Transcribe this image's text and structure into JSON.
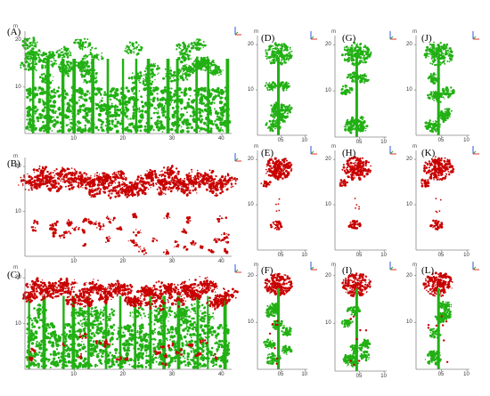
{
  "colors": {
    "green": "#22b014",
    "red": "#c80000",
    "axis": "#888888",
    "compass_red": "#e03030",
    "compass_blue": "#3050e0"
  },
  "icons": {
    "compass": "xyz-axis-triad-icon"
  },
  "panels": [
    {
      "id": "A",
      "label": "(A)",
      "unit": "m",
      "kind": "stand",
      "color": "green",
      "y_ticks": [
        "10",
        "20"
      ],
      "x_ticks": [
        "10",
        "20",
        "30",
        "40"
      ]
    },
    {
      "id": "B",
      "label": "(B)",
      "unit": "m",
      "kind": "stand",
      "color": "red",
      "y_ticks": [
        "10",
        "20"
      ],
      "x_ticks": [
        "10",
        "20",
        "30",
        "40"
      ]
    },
    {
      "id": "C",
      "label": "(C)",
      "unit": "m",
      "kind": "stand",
      "color": "mixed",
      "y_ticks": [
        "10",
        "20"
      ],
      "x_ticks": [
        "10",
        "20",
        "30",
        "40"
      ]
    },
    {
      "id": "D",
      "label": "(D)",
      "unit": "m",
      "kind": "tree",
      "color": "green",
      "y_ticks": [
        "10",
        "20"
      ],
      "x_ticks": [
        "05",
        "10"
      ]
    },
    {
      "id": "E",
      "label": "(E)",
      "unit": "m",
      "kind": "tree",
      "color": "red",
      "y_ticks": [
        "10",
        "20"
      ],
      "x_ticks": [
        "05",
        "10"
      ]
    },
    {
      "id": "F",
      "label": "(F)",
      "unit": "m",
      "kind": "tree",
      "color": "mixed",
      "y_ticks": [
        "10",
        "20"
      ],
      "x_ticks": [
        "05",
        "10"
      ]
    },
    {
      "id": "G",
      "label": "(G)",
      "unit": "m",
      "kind": "tree",
      "color": "green",
      "y_ticks": [
        "10",
        "20"
      ],
      "x_ticks": [
        "05",
        "10"
      ]
    },
    {
      "id": "H",
      "label": "(H)",
      "unit": "m",
      "kind": "tree",
      "color": "red",
      "y_ticks": [
        "10",
        "20"
      ],
      "x_ticks": [
        "05",
        "10"
      ]
    },
    {
      "id": "I",
      "label": "(I)",
      "unit": "m",
      "kind": "tree",
      "color": "mixed",
      "y_ticks": [
        "10",
        "20"
      ],
      "x_ticks": [
        "05",
        "10"
      ]
    },
    {
      "id": "J",
      "label": "(J)",
      "unit": "m",
      "kind": "tree",
      "color": "green",
      "y_ticks": [
        "10",
        "20"
      ],
      "x_ticks": [
        "05",
        "10"
      ]
    },
    {
      "id": "K",
      "label": "(K)",
      "unit": "m",
      "kind": "tree",
      "color": "red",
      "y_ticks": [
        "10",
        "20"
      ],
      "x_ticks": [
        "05",
        "10"
      ]
    },
    {
      "id": "L",
      "label": "(L)",
      "unit": "m",
      "kind": "tree",
      "color": "mixed",
      "y_ticks": [
        "10",
        "20"
      ],
      "x_ticks": [
        "05",
        "10"
      ]
    }
  ]
}
